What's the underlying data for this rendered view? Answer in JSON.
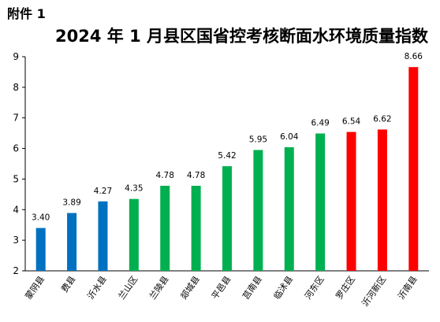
{
  "header": {
    "attachment_label": "附件 1",
    "title": "2024 年 1 月县区国省控考核断面水环境质量指数"
  },
  "chart_data": {
    "type": "bar",
    "title": "2024 年 1 月县区国省控考核断面水环境质量指数",
    "xlabel": "",
    "ylabel": "",
    "ylim": [
      2,
      9
    ],
    "yticks": [
      2,
      3,
      4,
      5,
      6,
      7,
      8,
      9
    ],
    "grid": false,
    "categories": [
      "蒙阴县",
      "费县",
      "沂水县",
      "兰山区",
      "兰陵县",
      "郯城县",
      "平邑县",
      "莒南县",
      "临沭县",
      "河东区",
      "罗庄区",
      "沂河新区",
      "沂南县"
    ],
    "values": [
      3.4,
      3.89,
      4.27,
      4.35,
      4.78,
      4.78,
      5.42,
      5.95,
      6.04,
      6.49,
      6.54,
      6.62,
      8.66
    ],
    "value_labels": [
      "3.40",
      "3.89",
      "4.27",
      "4.35",
      "4.78",
      "4.78",
      "5.42",
      "5.95",
      "6.04",
      "6.49",
      "6.54",
      "6.62",
      "8.66"
    ],
    "bar_colors": [
      "#0070C0",
      "#0070C0",
      "#0070C0",
      "#00B050",
      "#00B050",
      "#00B050",
      "#00B050",
      "#00B050",
      "#00B050",
      "#00B050",
      "#FF0000",
      "#FF0000",
      "#FF0000"
    ]
  }
}
